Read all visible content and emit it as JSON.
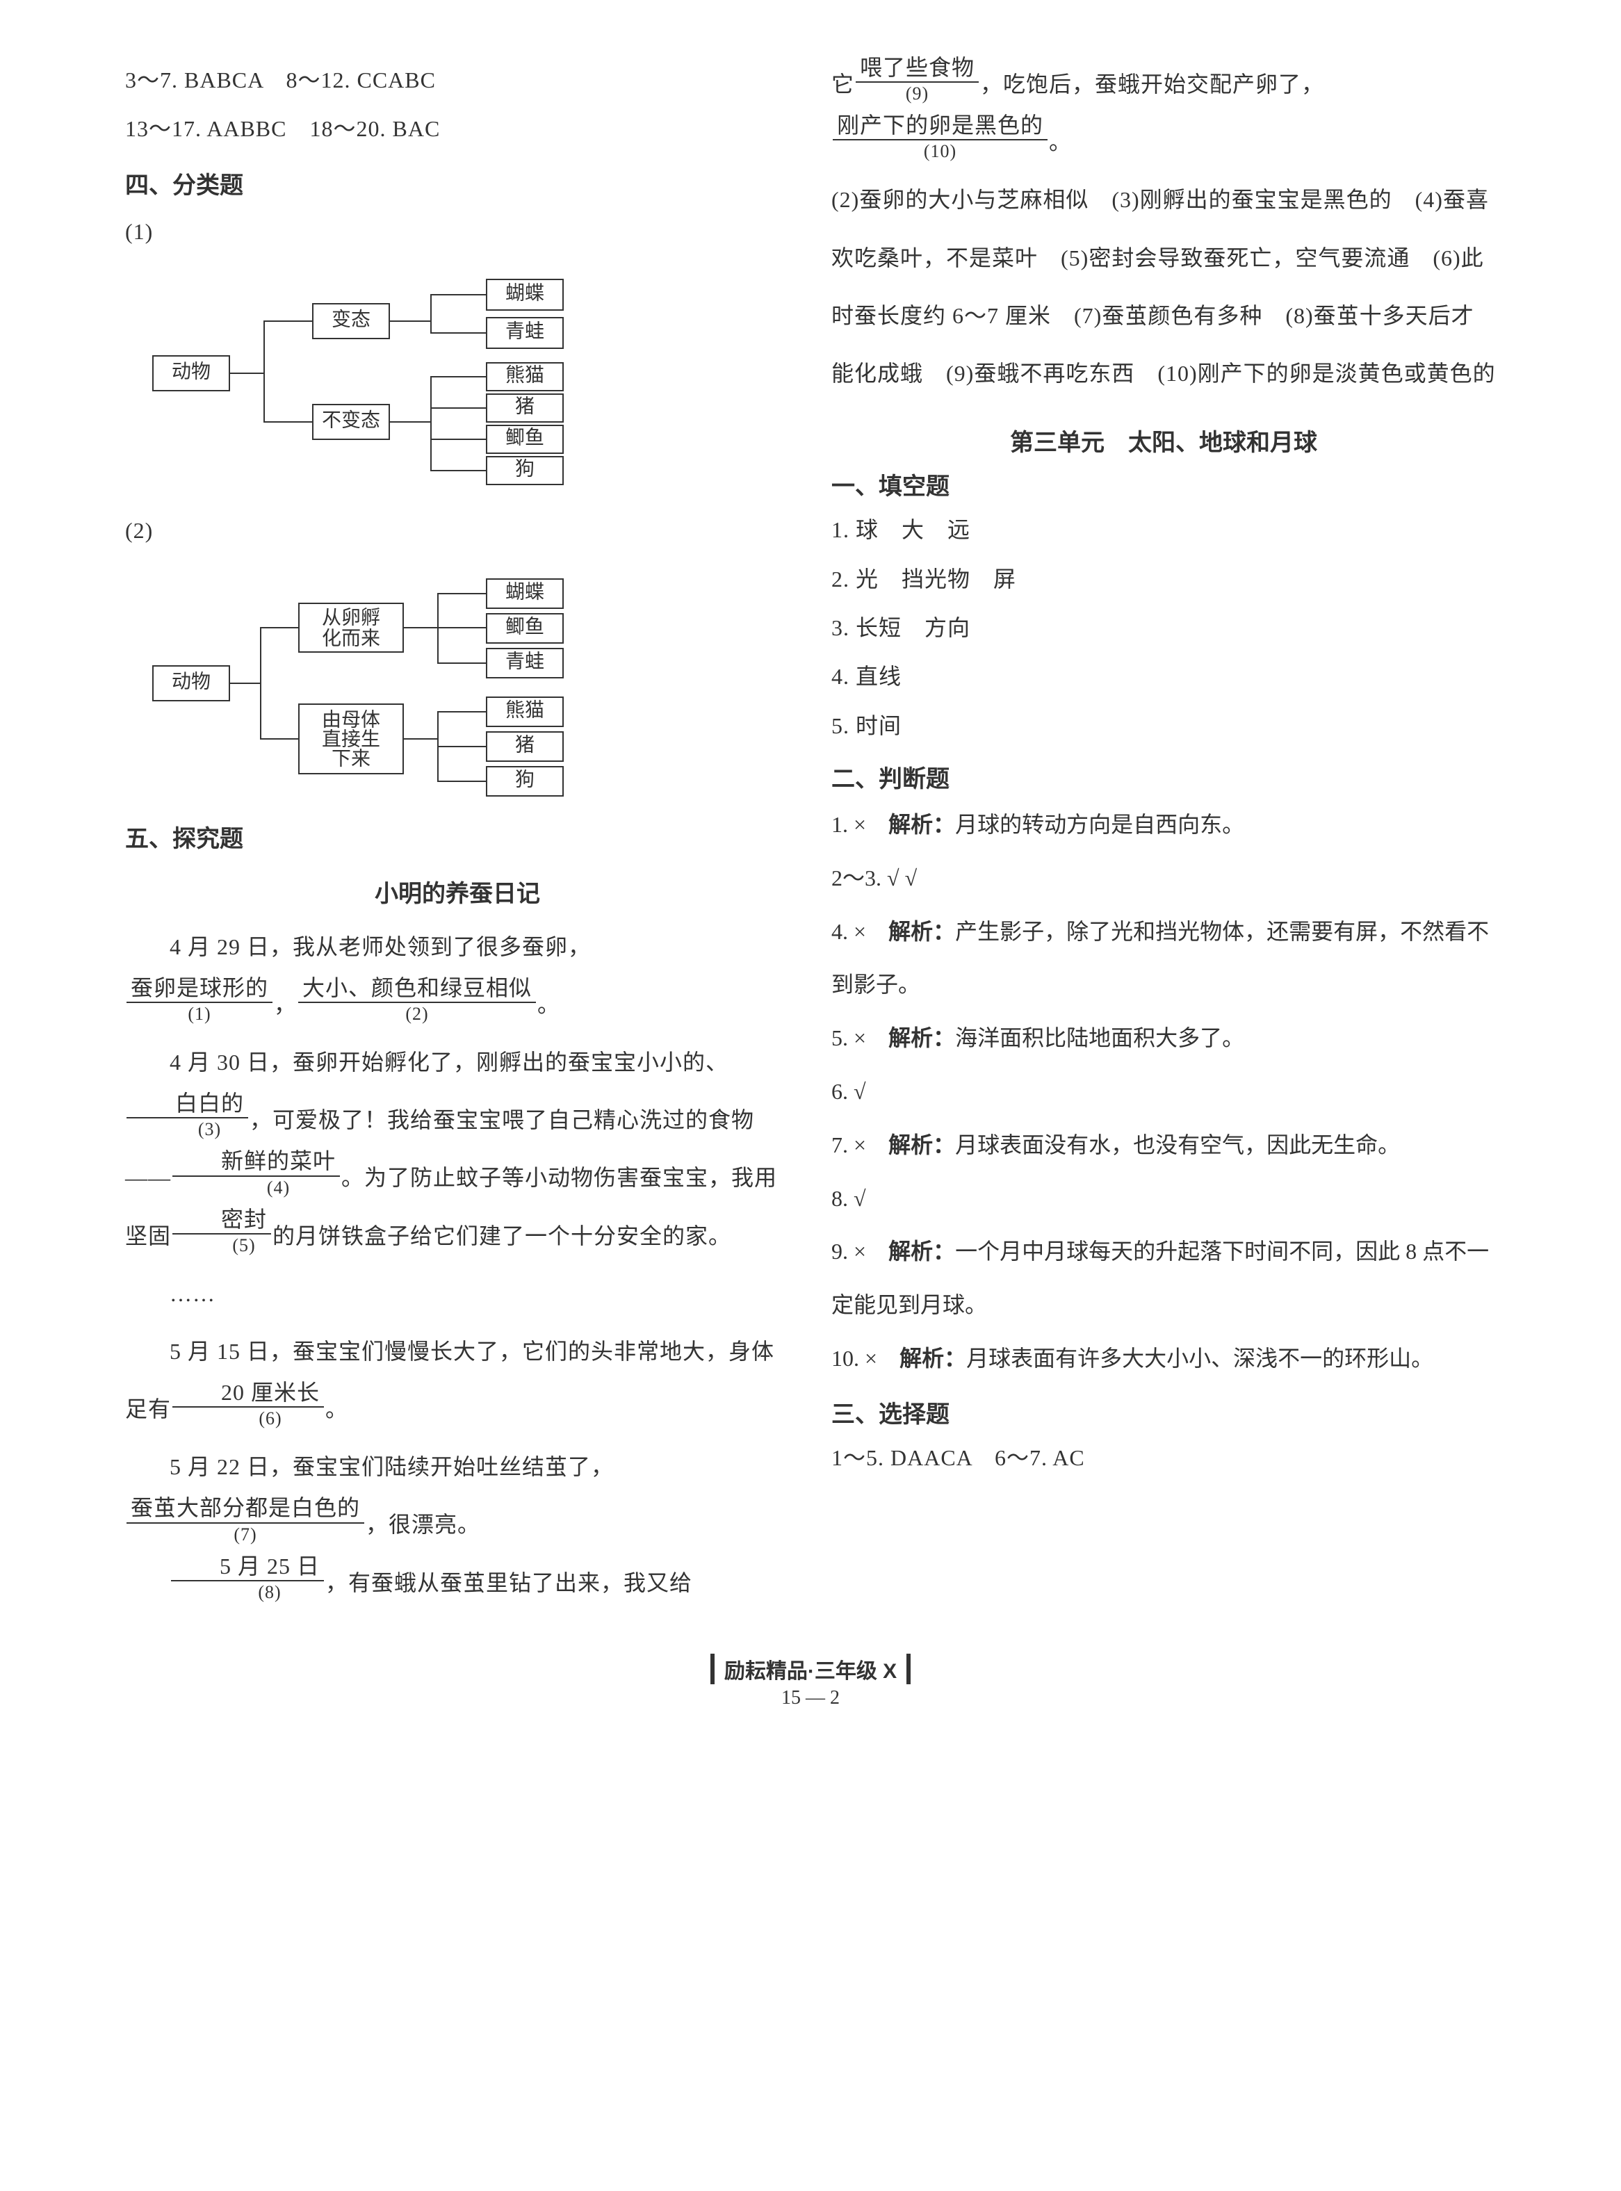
{
  "left": {
    "answers1": "3～7. BABCA　8～12. CCABC",
    "answers2": "13～17. AABBC　18～20. BAC",
    "section4": "四、分类题",
    "q1_label": "(1)",
    "q2_label": "(2)",
    "diagram1": {
      "root": "动物",
      "mid": [
        "变态",
        "不变态"
      ],
      "leaves1": [
        "蝴蝶",
        "青蛙"
      ],
      "leaves2": [
        "熊猫",
        "猪",
        "鲫鱼",
        "狗"
      ]
    },
    "diagram2": {
      "root": "动物",
      "mid": [
        "从卵孵化而来",
        "由母体直接生下来"
      ],
      "leaves1": [
        "蝴蝶",
        "鲫鱼",
        "青蛙"
      ],
      "leaves2": [
        "熊猫",
        "猪",
        "狗"
      ]
    },
    "section5": "五、探究题",
    "diary_title": "小明的养蚕日记",
    "p1_pre": "4 月 29 日，我从老师处领到了很多蚕卵，",
    "u1": "蚕卵是球形的",
    "d1": "(1)",
    "p1_mid": "，",
    "u2": "大小、颜色和绿豆相似",
    "d2": "(2)",
    "p1_end": "。",
    "p2_pre": "4 月 30 日，蚕卵开始孵化了，刚孵出的蚕宝宝小小的、",
    "u3": "白白的",
    "d3": "(3)",
    "p2_mid": "，可爱极了！我给蚕宝宝喂了自己精心洗过的食物——",
    "u4": "新鲜的菜叶",
    "d4": "(4)",
    "p2_mid2": "。为了防止蚊子等小动物伤害蚕宝宝，我用坚固",
    "u5": "密封",
    "d5": "(5)",
    "p2_end": "的月饼铁盒子给它们建了一个十分安全的家。",
    "ellipsis": "……",
    "p3_pre": "5 月 15 日，蚕宝宝们慢慢长大了，它们的头非常地大，身体足有",
    "u6": "20 厘米长",
    "d6": "(6)",
    "p3_end": "。",
    "p4_pre": "5 月 22 日，蚕宝宝们陆续开始吐丝结茧了，",
    "u7": "蚕茧大部分都是白色的",
    "d7": "(7)",
    "p4_end": "，很漂亮。",
    "u8": "5 月 25 日",
    "d8": "(8)",
    "p5_end": "，有蚕蛾从蚕茧里钻了出来，我又给"
  },
  "right": {
    "cont_pre": "它",
    "u9": "喂了些食物",
    "d9": "(9)",
    "cont_mid": "，吃饱后，蚕蛾开始交配产卵了，",
    "u10": "刚产下的卵是黑色的",
    "d10": "(10)",
    "cont_end": "。",
    "analysis": "(2)蚕卵的大小与芝麻相似　(3)刚孵出的蚕宝宝是黑色的　(4)蚕喜欢吃桑叶，不是菜叶　(5)密封会导致蚕死亡，空气要流通　(6)此时蚕长度约 6～7 厘米　(7)蚕茧颜色有多种　(8)蚕茧十多天后才能化成蛾　(9)蚕蛾不再吃东西　(10)刚产下的卵是淡黄色或黄色的",
    "unit_title": "第三单元　太阳、地球和月球",
    "fill_head": "一、填空题",
    "fill": [
      "1. 球　大　远",
      "2. 光　挡光物　屏",
      "3. 长短　方向",
      "4. 直线",
      "5. 时间"
    ],
    "judge_head": "二、判断题",
    "judge": [
      {
        "n": "1. ×",
        "t": "解析：",
        "e": "月球的转动方向是自西向东。"
      },
      {
        "n": "2～3. √ √",
        "t": "",
        "e": ""
      },
      {
        "n": "4. ×",
        "t": "解析：",
        "e": "产生影子，除了光和挡光物体，还需要有屏，不然看不到影子。"
      },
      {
        "n": "5. ×",
        "t": "解析：",
        "e": "海洋面积比陆地面积大多了。"
      },
      {
        "n": "6. √",
        "t": "",
        "e": ""
      },
      {
        "n": "7. ×",
        "t": "解析：",
        "e": "月球表面没有水，也没有空气，因此无生命。"
      },
      {
        "n": "8. √",
        "t": "",
        "e": ""
      },
      {
        "n": "9. ×",
        "t": "解析：",
        "e": "一个月中月球每天的升起落下时间不同，因此 8 点不一定能见到月球。"
      },
      {
        "n": "10. ×",
        "t": "解析：",
        "e": "月球表面有许多大大小小、深浅不一的环形山。"
      }
    ],
    "choice_head": "三、选择题",
    "choice": "1～5. DAACA　6～7. AC"
  },
  "footer": {
    "title": "励耘精品·三年级 X",
    "num": "15 — 2"
  },
  "colors": {
    "text": "#333333",
    "bg": "#ffffff",
    "border": "#333333"
  }
}
